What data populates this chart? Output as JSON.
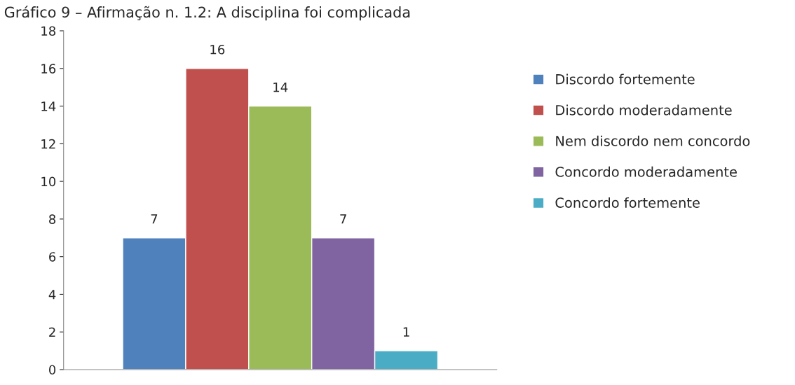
{
  "chart_data": {
    "type": "bar",
    "title": "Gráfico 9 – Afirmação n. 1.2: A disciplina foi complicada",
    "categories": [
      null
    ],
    "series": [
      {
        "name": "Discordo fortemente",
        "color": "#4f81bd",
        "values": [
          7
        ]
      },
      {
        "name": "Discordo moderadamente",
        "color": "#c0504d",
        "values": [
          16
        ]
      },
      {
        "name": "Nem discordo nem concordo",
        "color": "#9bbb59",
        "values": [
          14
        ]
      },
      {
        "name": "Concordo moderadamente",
        "color": "#8064a2",
        "values": [
          7
        ]
      },
      {
        "name": "Concordo fortemente",
        "color": "#4bacc6",
        "values": [
          1
        ]
      }
    ],
    "ylim": [
      0,
      18
    ],
    "yticks": [
      0,
      2,
      4,
      6,
      8,
      10,
      12,
      14,
      16,
      18
    ],
    "data_labels": true,
    "legend": "right",
    "grid": false
  }
}
